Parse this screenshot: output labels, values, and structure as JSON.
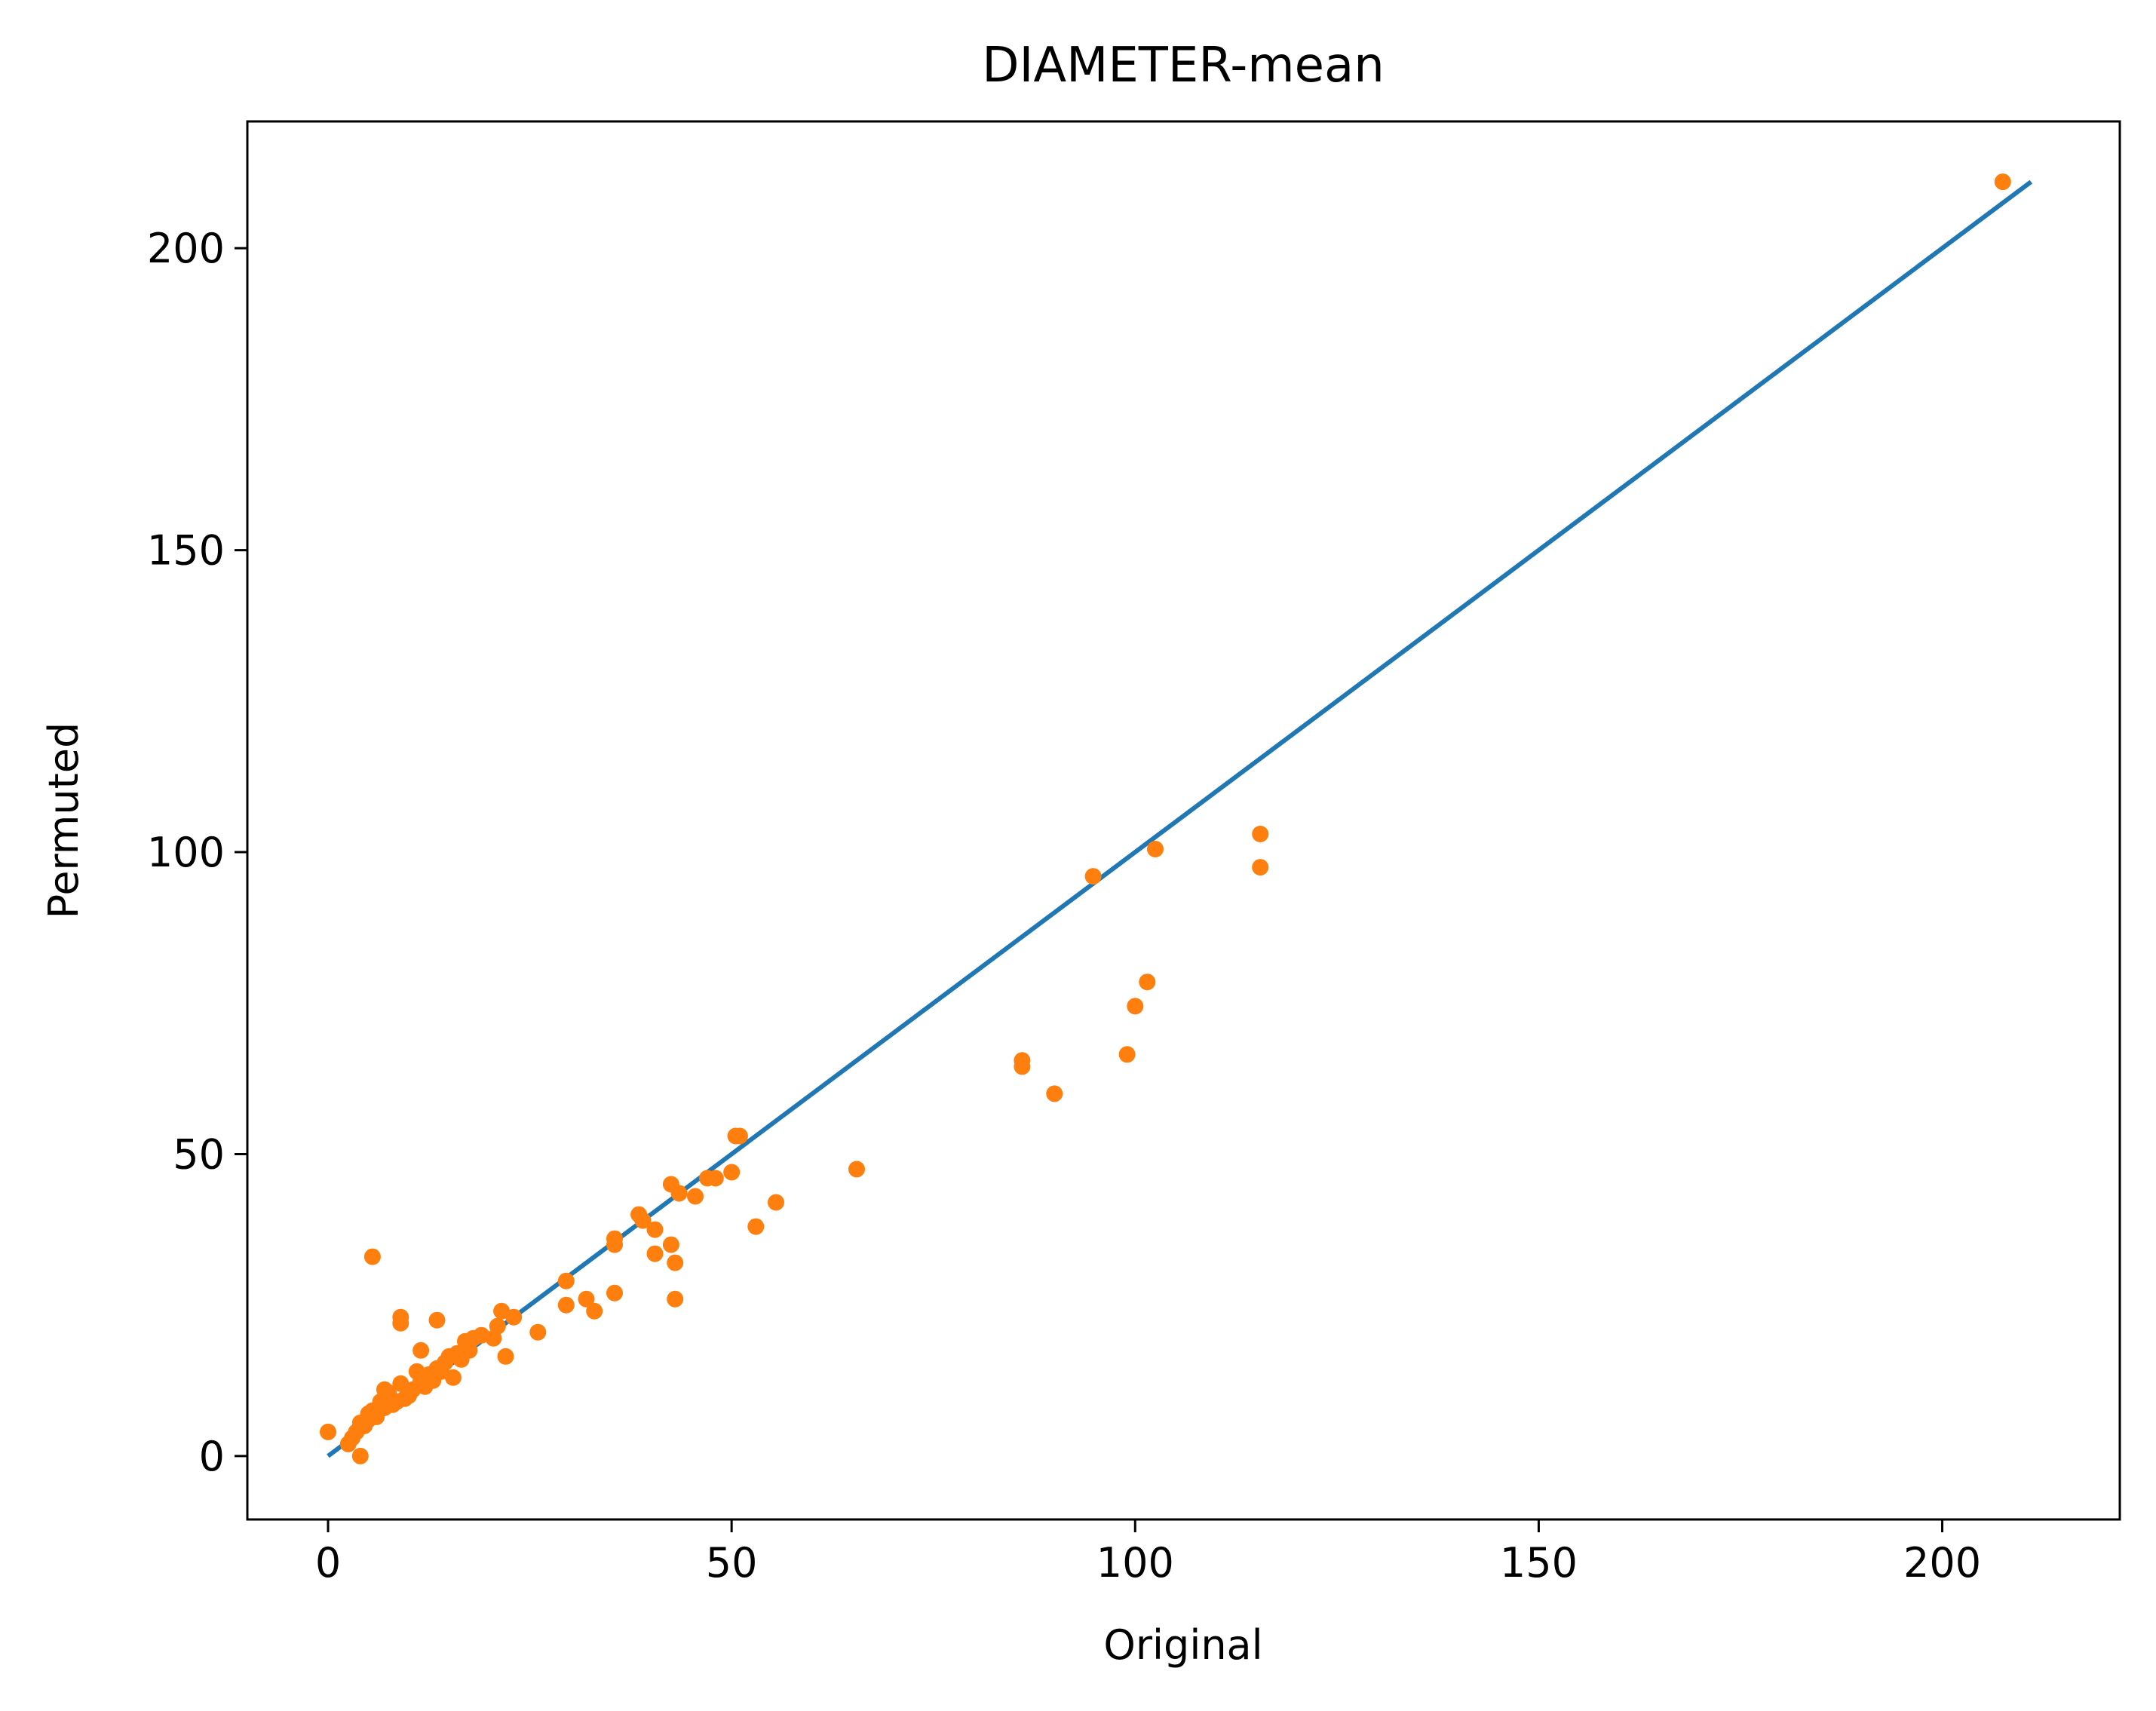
{
  "chart_data": {
    "type": "scatter",
    "title": "DIAMETER-mean",
    "xlabel": "Original",
    "ylabel": "Permuted",
    "xlim": [
      -10,
      222
    ],
    "ylim": [
      -10.5,
      221
    ],
    "xticks": [
      0,
      50,
      100,
      150,
      200
    ],
    "yticks": [
      0,
      50,
      100,
      150,
      200
    ],
    "grid": false,
    "legend": "none",
    "line_color": "#1f77b4",
    "point_color": "#ff7f0e",
    "series": [
      {
        "kind": "line",
        "x": [
          0,
          211
        ],
        "y": [
          0,
          211
        ]
      },
      {
        "kind": "scatter",
        "x": [
          207.5,
          115.5,
          115.5,
          102.5,
          94.8,
          101.5,
          100,
          99,
          86,
          86,
          90,
          65.5,
          55.5,
          53,
          51,
          50.5,
          50,
          48,
          47,
          45.5,
          43.5,
          42.5,
          42.5,
          43,
          43,
          40.5,
          40.5,
          39,
          38.5,
          35.5,
          35.5,
          35.5,
          33,
          32,
          29.5,
          29.5,
          26,
          23,
          22,
          21.5,
          21,
          20.5,
          19,
          18,
          17.5,
          17,
          16.5,
          16,
          15.5,
          15,
          14.5,
          14,
          13.5,
          13,
          12.5,
          12,
          11.5,
          11,
          10.5,
          10,
          9.5,
          9,
          9,
          9,
          8.5,
          8,
          7.5,
          7,
          7,
          6.5,
          6,
          6,
          5.5,
          5.5,
          5,
          5,
          4.5,
          4,
          4,
          3.5,
          3,
          2.5,
          0,
          13.5,
          11.5,
          16
        ],
        "y": [
          211,
          103,
          97.5,
          100.5,
          96,
          78.5,
          74.5,
          66.5,
          65.5,
          64.5,
          60,
          47.5,
          42,
          38,
          53,
          53,
          47,
          46,
          46,
          43,
          43.5,
          45,
          35,
          32,
          26,
          37.5,
          33.5,
          39,
          40,
          36,
          35,
          27,
          24,
          26,
          29,
          25,
          20.5,
          23,
          16.5,
          24,
          21.5,
          19.5,
          20,
          19.5,
          17.5,
          19,
          16,
          17,
          13,
          16.5,
          15.5,
          14,
          14.5,
          12.5,
          13.5,
          11.5,
          17.5,
          14,
          11,
          10,
          9.5,
          23,
          22,
          12,
          9,
          8.5,
          10.5,
          8,
          11,
          9,
          7.5,
          6.5,
          7.5,
          33,
          7,
          6,
          5,
          5.5,
          0,
          4,
          3,
          2,
          4,
          22.5,
          12.5,
          17
        ]
      }
    ]
  }
}
